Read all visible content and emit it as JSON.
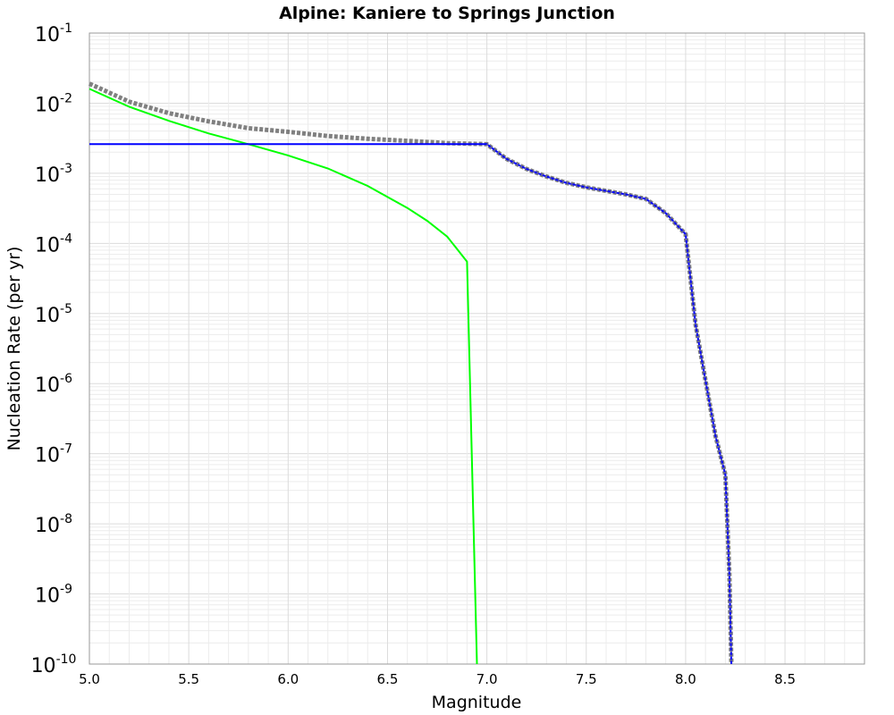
{
  "chart_data": {
    "type": "line",
    "title": "Alpine: Kaniere to Springs Junction",
    "xlabel": "Magnitude",
    "ylabel": "Nucleation Rate (per yr)",
    "xlim": [
      5.0,
      8.9
    ],
    "ylim_log10": [
      -10,
      -1
    ],
    "y_scale": "log",
    "grid": true,
    "x_ticks": [
      "5.0",
      "5.5",
      "6.0",
      "6.5",
      "7.0",
      "7.5",
      "8.0",
      "8.5"
    ],
    "y_ticks": [
      {
        "base": "10",
        "exp": "-1"
      },
      {
        "base": "10",
        "exp": "-2"
      },
      {
        "base": "10",
        "exp": "-3"
      },
      {
        "base": "10",
        "exp": "-4"
      },
      {
        "base": "10",
        "exp": "-5"
      },
      {
        "base": "10",
        "exp": "-6"
      },
      {
        "base": "10",
        "exp": "-7"
      },
      {
        "base": "10",
        "exp": "-8"
      },
      {
        "base": "10",
        "exp": "-9"
      },
      {
        "base": "10",
        "exp": "-10"
      }
    ],
    "series": [
      {
        "name": "green",
        "color": "#00ff00",
        "style": "solid",
        "x": [
          5.0,
          5.2,
          5.4,
          5.6,
          5.8,
          6.0,
          6.2,
          6.4,
          6.6,
          6.7,
          6.8,
          6.9,
          6.95
        ],
        "y": [
          0.016,
          0.0089,
          0.0056,
          0.0037,
          0.0026,
          0.0018,
          0.00117,
          0.00066,
          0.00032,
          0.00021,
          0.000125,
          5.5e-05,
          1e-10
        ]
      },
      {
        "name": "gray-total",
        "color": "#808080",
        "style": "dotted",
        "x": [
          5.0,
          5.2,
          5.4,
          5.6,
          5.8,
          6.0,
          6.2,
          6.4,
          6.6,
          6.8,
          7.0,
          7.1,
          7.2,
          7.3,
          7.4,
          7.5,
          7.6,
          7.7,
          7.8,
          7.9,
          8.0,
          8.05,
          8.1,
          8.15,
          8.2,
          8.22,
          8.23
        ],
        "y": [
          0.019,
          0.0105,
          0.0072,
          0.0055,
          0.0044,
          0.0039,
          0.0034,
          0.0031,
          0.0029,
          0.0027,
          0.0026,
          0.0016,
          0.00115,
          0.0009,
          0.00073,
          0.00063,
          0.00056,
          0.0005,
          0.00043,
          0.00027,
          0.000135,
          7e-06,
          1.1e-06,
          1.8e-07,
          5e-08,
          2e-09,
          1e-10
        ]
      },
      {
        "name": "blue",
        "color": "#0000ff",
        "style": "solid",
        "x": [
          5.0,
          6.0,
          6.9,
          7.0,
          7.1,
          7.2,
          7.3,
          7.4,
          7.5,
          7.6,
          7.7,
          7.8,
          7.9,
          8.0,
          8.05,
          8.1,
          8.15,
          8.2,
          8.22,
          8.23
        ],
        "y": [
          0.0026,
          0.0026,
          0.0026,
          0.0026,
          0.0016,
          0.00115,
          0.0009,
          0.00073,
          0.00063,
          0.00056,
          0.0005,
          0.00043,
          0.00027,
          0.000135,
          7e-06,
          1.1e-06,
          1.8e-07,
          5e-08,
          2e-09,
          1e-10
        ]
      }
    ]
  }
}
